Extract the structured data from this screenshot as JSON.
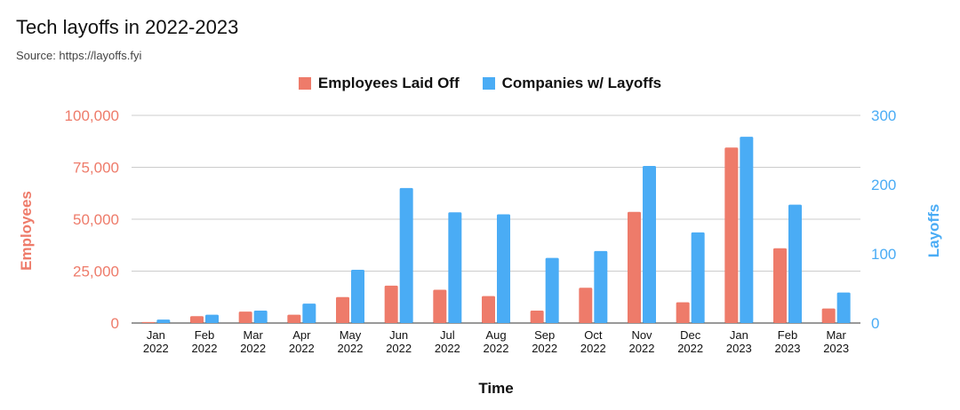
{
  "colors": {
    "employees": "#ee7b6a",
    "companies": "#4aacf5",
    "grid": "#cccccc"
  },
  "chart_data": {
    "type": "bar",
    "title": "Tech layoffs in 2022-2023",
    "subtitle": "Source: https://layoffs.fyi",
    "xlabel": "Time",
    "ylabel_left": "Employees",
    "ylabel_right": "Layoffs",
    "legend_position": "top-center",
    "grid": true,
    "categories": [
      [
        "Jan",
        "2022"
      ],
      [
        "Feb",
        "2022"
      ],
      [
        "Mar",
        "2022"
      ],
      [
        "Apr",
        "2022"
      ],
      [
        "May",
        "2022"
      ],
      [
        "Jun",
        "2022"
      ],
      [
        "Jul",
        "2022"
      ],
      [
        "Aug",
        "2022"
      ],
      [
        "Sep",
        "2022"
      ],
      [
        "Oct",
        "2022"
      ],
      [
        "Nov",
        "2022"
      ],
      [
        "Dec",
        "2022"
      ],
      [
        "Jan",
        "2023"
      ],
      [
        "Feb",
        "2023"
      ],
      [
        "Mar",
        "2023"
      ]
    ],
    "ylim_left": [
      0,
      100000
    ],
    "ylim_right": [
      0,
      300
    ],
    "left_ticks": [
      "0",
      "25,000",
      "50,000",
      "75,000",
      "100,000"
    ],
    "right_ticks": [
      "0",
      "100",
      "200",
      "300"
    ],
    "series": [
      {
        "name": "Employees Laid Off",
        "axis": "left",
        "values": [
          500,
          3300,
          5500,
          4000,
          12500,
          18000,
          16000,
          13000,
          6000,
          17000,
          53500,
          10000,
          84500,
          36000,
          7000
        ]
      },
      {
        "name": "Companies w/ Layoffs",
        "axis": "right",
        "values": [
          5,
          12,
          18,
          28,
          77,
          195,
          160,
          157,
          94,
          104,
          227,
          131,
          269,
          171,
          44
        ]
      }
    ]
  }
}
